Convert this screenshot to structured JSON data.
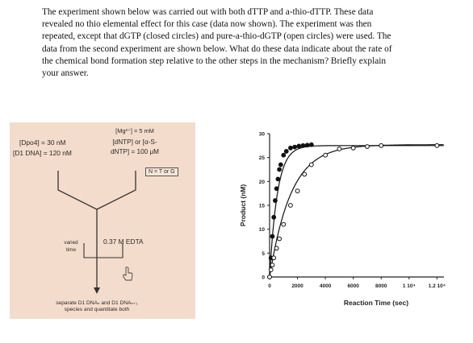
{
  "question": {
    "lines": [
      "The experiment shown below was carried out with both dTTP and a-thio-dTTP. These data",
      "revealed no thio elemental effect for this case (data now shown). The experiment was then",
      "repeated, except that dGTP (closed circles) and pure-a-thio-dGTP (open circles) were used. The",
      "data from the second experiment are shown below. What do these data indicate about the rate of",
      "the chemical bond formation step relative to the other steps in the mechanism? Briefly explain",
      "your answer."
    ]
  },
  "diagram": {
    "dpo4": "[Dpo4] = 30 nM",
    "d1dna": "[D1 DNA] = 120 nM",
    "mg": "[Mg²⁺] = 5 mM",
    "dntp_line1": "[dNTP] or [α-S-",
    "dntp_line2": "dNTP] = 100 μM",
    "n_tag": "N = T or G",
    "varied_line1": "varied",
    "varied_line2": "time",
    "edta": "0.37 M EDTA",
    "bottom_line1": "separate D1 DNAₙ and D1 DNAₙ₊₁",
    "bottom_line2": "species and quantitate both"
  },
  "chart_data": {
    "type": "scatter",
    "title": "",
    "xlabel": "Reaction Time (sec)",
    "ylabel": "Product (nM)",
    "xlim": [
      0,
      12500
    ],
    "ylim": [
      0,
      30
    ],
    "xticks": [
      0,
      2000,
      4000,
      6000,
      8000,
      10000,
      12000
    ],
    "xtick_labels": [
      "0",
      "2000",
      "4000",
      "6000",
      "8000",
      "1 10⁴",
      "1.2 10⁴"
    ],
    "yticks": [
      0,
      5,
      10,
      15,
      20,
      25,
      30
    ],
    "ytick_labels": [
      "0",
      "5",
      "10",
      "15",
      "20",
      "25",
      "30"
    ],
    "grid": false,
    "series": [
      {
        "style": "closed",
        "color": "#111111",
        "x": [
          0,
          100,
          200,
          300,
          400,
          500,
          600,
          700,
          800,
          1000,
          1200,
          1500,
          1800,
          2100,
          2400,
          2700,
          3000
        ],
        "y": [
          0,
          4,
          8.5,
          12.5,
          16,
          18.5,
          20.5,
          22.5,
          23.5,
          25.5,
          26.3,
          27,
          27.2,
          27.4,
          27.5,
          27.6,
          27.7
        ],
        "fit": {
          "plateau": 27.5,
          "rate": 0.0018
        }
      },
      {
        "style": "open",
        "color": "#111111",
        "x": [
          0,
          100,
          200,
          300,
          500,
          700,
          1000,
          1500,
          2000,
          2500,
          3000,
          4000,
          5000,
          6000,
          7000,
          8000,
          12000
        ],
        "y": [
          0,
          1.5,
          2.5,
          4,
          6,
          8,
          11,
          15,
          18,
          21.5,
          23.5,
          25.5,
          26.8,
          27,
          27.3,
          27.5,
          27.5
        ],
        "fit": {
          "plateau": 27.7,
          "rate": 0.00065
        }
      }
    ]
  }
}
